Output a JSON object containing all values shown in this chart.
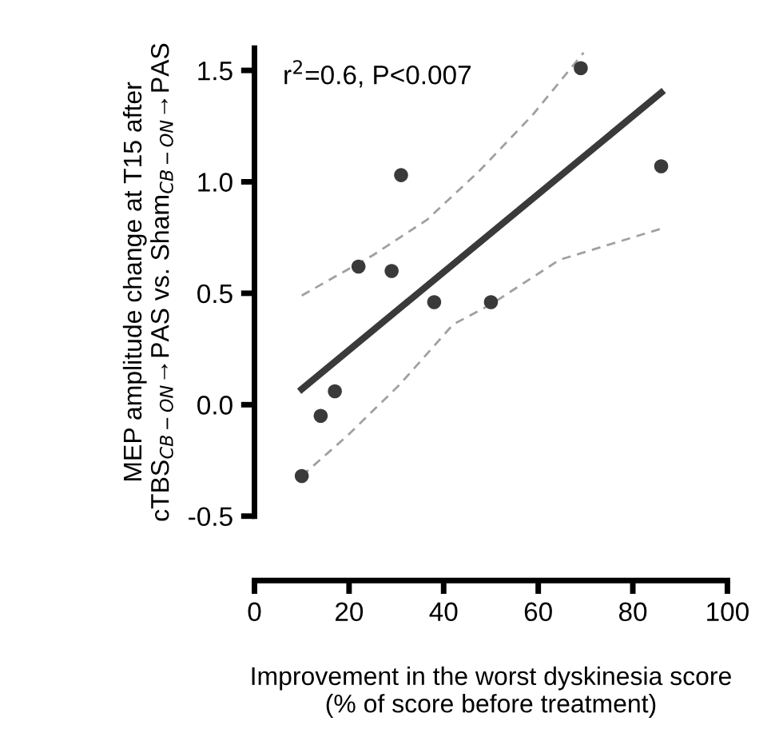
{
  "chart_data": {
    "type": "scatter",
    "xlabel": "Improvement in the worst dyskinesia score\n(% of score before treatment)",
    "ylabel": "MEP amplitude change at T15 after\ncTBS$_{CB−ON}$→PAS vs. Sham$_{CB−ON}$→PAS",
    "annotations": [
      "r$^{2}$=0.6, P<0.007"
    ],
    "series": [
      {
        "color": "#3a3a3a",
        "marker": "circle",
        "x": [
          10,
          14,
          17,
          22,
          29,
          31,
          38,
          50,
          69,
          86
        ],
        "values": [
          -0.32,
          -0.05,
          0.06,
          0.62,
          0.6,
          1.03,
          0.46,
          0.46,
          1.51,
          1.07
        ]
      },
      {
        "type": "line",
        "color": "#3a3a3a",
        "line_style": "solid",
        "x": [
          10,
          86
        ],
        "values": [
          0.07,
          1.4
        ]
      },
      {
        "type": "line",
        "color": "#a0a0a0",
        "line_style": "dashed",
        "x": [
          10,
          25,
          36.5,
          47.6,
          58.8,
          69.6
        ],
        "values": [
          0.49,
          0.67,
          0.83,
          1.05,
          1.3,
          1.58
        ]
      },
      {
        "type": "line",
        "color": "#a0a0a0",
        "line_style": "dashed",
        "x": [
          10,
          19.6,
          30.7,
          42,
          50,
          64.5,
          86
        ],
        "values": [
          -0.32,
          -0.14,
          0.09,
          0.36,
          0.45,
          0.65,
          0.79
        ]
      }
    ],
    "xlim": [
      0,
      100
    ],
    "xticks": [
      0,
      20,
      40,
      60,
      80,
      100
    ],
    "ylim": [
      -0.5,
      1.6
    ],
    "yticks": [
      {
        "value": -0.5,
        "label": "-0.5"
      },
      {
        "value": 0,
        "label": "0.0"
      },
      {
        "value": 0.5,
        "label": "0.5"
      },
      {
        "value": 1.0,
        "label": "1.0"
      },
      {
        "value": 1.5,
        "label": "1.5"
      }
    ],
    "grid": false,
    "legend": false
  }
}
